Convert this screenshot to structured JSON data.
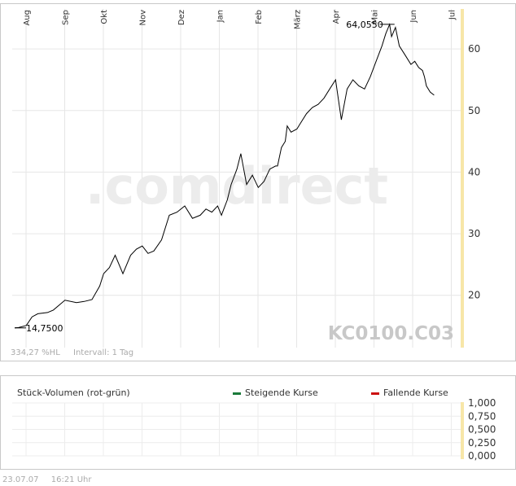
{
  "chart_data": {
    "type": "line",
    "title": "KC0100.C03",
    "watermark": ".comdirect",
    "months": [
      "Aug",
      "Sep",
      "Okt",
      "Nov",
      "Dez",
      "Jan",
      "Feb",
      "März",
      "Apr",
      "Mai",
      "Jun",
      "Jul"
    ],
    "y_ticks": [
      "20",
      "30",
      "40",
      "50",
      "60"
    ],
    "ylim": [
      11.5,
      66.5
    ],
    "start_label": "14,7500",
    "max_label": "64,0550",
    "change_label": "334,27 %HL",
    "interval_label": "Intervall: 1 Tag",
    "series": [
      {
        "name": "KC0100.C03",
        "x": [
          0,
          0.1,
          0.3,
          0.45,
          0.6,
          0.85,
          1.0,
          1.3,
          1.6,
          1.8,
          2.0,
          2.2,
          2.3,
          2.45,
          2.6,
          2.8,
          3.0,
          3.15,
          3.3,
          3.45,
          3.6,
          3.8,
          4.0,
          4.2,
          4.4,
          4.6,
          4.8,
          4.95,
          5.1,
          5.25,
          5.35,
          5.5,
          5.6,
          5.75,
          5.85,
          6.0,
          6.15,
          6.3,
          6.45,
          6.6,
          6.75,
          6.8,
          6.9,
          7.0,
          7.05,
          7.15,
          7.3,
          7.4,
          7.55,
          7.7,
          7.85,
          8.0,
          8.15,
          8.3,
          8.45,
          8.6,
          8.75,
          8.9,
          9.05,
          9.2,
          9.35,
          9.5,
          9.6,
          9.7,
          9.75,
          9.85,
          9.95,
          10.1,
          10.25,
          10.35,
          10.45,
          10.55,
          10.6,
          10.65,
          10.75,
          10.85
        ],
        "values": [
          14.7,
          14.75,
          15.1,
          16.5,
          17.0,
          17.2,
          17.6,
          19.2,
          18.8,
          19.0,
          19.3,
          21.5,
          23.5,
          24.5,
          26.5,
          23.5,
          26.5,
          27.5,
          28.0,
          26.8,
          27.2,
          29.0,
          33.0,
          33.5,
          34.5,
          32.5,
          33.0,
          34.0,
          33.5,
          34.5,
          33.0,
          35.5,
          38.0,
          40.5,
          43.0,
          38.0,
          39.5,
          37.5,
          38.5,
          40.5,
          41.0,
          41.0,
          44.0,
          45.0,
          47.5,
          46.5,
          47.0,
          48.0,
          49.5,
          50.5,
          51.0,
          52.0,
          53.5,
          55.0,
          48.5,
          53.5,
          55.0,
          54.0,
          53.5,
          55.5,
          58.0,
          60.5,
          62.5,
          64.0,
          62.0,
          63.5,
          60.5,
          59.0,
          57.5,
          58.0,
          57.0,
          56.5,
          55.5,
          54.0,
          53.0,
          52.5
        ]
      }
    ]
  },
  "volume": {
    "label": "Stück-Volumen (rot-grün)",
    "legend_up": "Steigende Kurse",
    "legend_down": "Fallende Kurse",
    "up_color": "#1a7a3a",
    "down_color": "#cc1111",
    "y_ticks": [
      "1,000",
      "0,750",
      "0,500",
      "0,250",
      "0,000"
    ]
  },
  "footer": {
    "date": "23.07.07",
    "time": "16:21 Uhr"
  }
}
